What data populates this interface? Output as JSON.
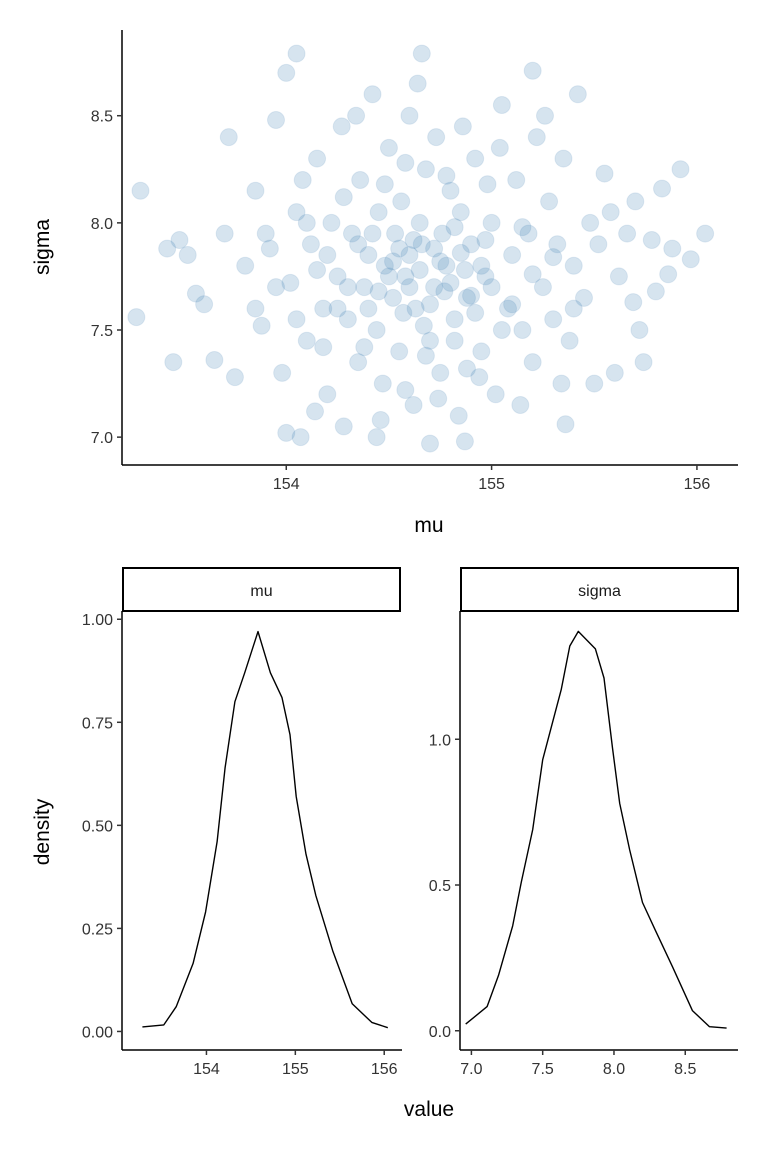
{
  "chart_data": [
    {
      "type": "scatter",
      "xlabel": "mu",
      "ylabel": "sigma",
      "xticks": [
        "154",
        "155",
        "156"
      ],
      "yticks": [
        "7.0",
        "7.5",
        "8.0",
        "8.5"
      ],
      "xtick_values": [
        154,
        155,
        156
      ],
      "ytick_values": [
        7.0,
        7.5,
        8.0,
        8.5
      ],
      "xlim": [
        153.2,
        156.2
      ],
      "ylim": [
        6.87,
        8.9
      ],
      "color": "#4682b4",
      "alpha": 0.22,
      "points": [
        [
          153.29,
          8.15
        ],
        [
          153.27,
          7.56
        ],
        [
          153.42,
          7.88
        ],
        [
          153.48,
          7.92
        ],
        [
          153.52,
          7.85
        ],
        [
          153.56,
          7.67
        ],
        [
          153.45,
          7.35
        ],
        [
          153.65,
          7.36
        ],
        [
          153.6,
          7.62
        ],
        [
          153.7,
          7.95
        ],
        [
          154.05,
          8.79
        ],
        [
          154.0,
          8.7
        ],
        [
          154.66,
          8.79
        ],
        [
          155.2,
          8.71
        ],
        [
          154.7,
          6.97
        ],
        [
          154.0,
          7.02
        ],
        [
          154.07,
          7.0
        ],
        [
          154.44,
          7.0
        ],
        [
          154.87,
          6.98
        ],
        [
          155.36,
          7.06
        ],
        [
          156.04,
          7.95
        ],
        [
          155.97,
          7.83
        ],
        [
          155.92,
          8.25
        ],
        [
          155.86,
          7.76
        ],
        [
          155.83,
          8.16
        ],
        [
          155.78,
          7.92
        ],
        [
          155.69,
          7.63
        ],
        [
          155.74,
          7.35
        ],
        [
          155.6,
          7.3
        ],
        [
          155.55,
          8.23
        ],
        [
          153.72,
          8.4
        ],
        [
          153.75,
          7.28
        ],
        [
          153.8,
          7.8
        ],
        [
          153.85,
          8.15
        ],
        [
          153.88,
          7.52
        ],
        [
          153.9,
          7.95
        ],
        [
          153.95,
          8.48
        ],
        [
          153.98,
          7.3
        ],
        [
          154.02,
          7.72
        ],
        [
          154.05,
          8.05
        ],
        [
          154.1,
          7.45
        ],
        [
          154.12,
          7.9
        ],
        [
          154.15,
          8.3
        ],
        [
          154.18,
          7.6
        ],
        [
          154.2,
          7.2
        ],
        [
          154.22,
          8.0
        ],
        [
          154.25,
          7.75
        ],
        [
          154.27,
          8.45
        ],
        [
          154.3,
          7.55
        ],
        [
          154.32,
          7.95
        ],
        [
          154.35,
          7.35
        ],
        [
          154.36,
          8.2
        ],
        [
          154.38,
          7.7
        ],
        [
          154.4,
          7.85
        ],
        [
          154.42,
          8.6
        ],
        [
          154.44,
          7.5
        ],
        [
          154.45,
          8.05
        ],
        [
          154.47,
          7.25
        ],
        [
          154.48,
          7.8
        ],
        [
          154.5,
          8.35
        ],
        [
          154.52,
          7.65
        ],
        [
          154.53,
          7.95
        ],
        [
          154.55,
          7.4
        ],
        [
          154.56,
          8.1
        ],
        [
          154.58,
          7.75
        ],
        [
          154.6,
          7.85
        ],
        [
          154.6,
          8.5
        ],
        [
          154.62,
          7.15
        ],
        [
          154.63,
          7.6
        ],
        [
          154.65,
          8.0
        ],
        [
          154.66,
          7.9
        ],
        [
          154.68,
          8.25
        ],
        [
          154.7,
          7.45
        ],
        [
          154.72,
          7.7
        ],
        [
          154.73,
          8.4
        ],
        [
          154.75,
          7.3
        ],
        [
          154.76,
          7.95
        ],
        [
          154.78,
          7.8
        ],
        [
          154.8,
          8.15
        ],
        [
          154.82,
          7.55
        ],
        [
          154.84,
          7.1
        ],
        [
          154.85,
          8.05
        ],
        [
          154.88,
          7.65
        ],
        [
          154.9,
          7.9
        ],
        [
          154.92,
          8.3
        ],
        [
          154.95,
          7.4
        ],
        [
          154.97,
          7.75
        ],
        [
          155.0,
          8.0
        ],
        [
          155.02,
          7.2
        ],
        [
          155.05,
          8.55
        ],
        [
          155.08,
          7.6
        ],
        [
          155.1,
          7.85
        ],
        [
          155.12,
          8.2
        ],
        [
          155.15,
          7.5
        ],
        [
          155.18,
          7.95
        ],
        [
          155.2,
          7.35
        ],
        [
          155.22,
          8.4
        ],
        [
          155.25,
          7.7
        ],
        [
          155.28,
          8.1
        ],
        [
          155.3,
          7.55
        ],
        [
          155.32,
          7.9
        ],
        [
          155.35,
          8.3
        ],
        [
          155.38,
          7.45
        ],
        [
          155.4,
          7.8
        ],
        [
          155.42,
          8.6
        ],
        [
          155.45,
          7.65
        ],
        [
          155.48,
          8.0
        ],
        [
          155.5,
          7.25
        ],
        [
          155.52,
          7.9
        ],
        [
          155.58,
          8.05
        ],
        [
          155.62,
          7.75
        ],
        [
          155.66,
          7.95
        ],
        [
          155.7,
          8.1
        ],
        [
          155.72,
          7.5
        ],
        [
          155.8,
          7.68
        ],
        [
          155.88,
          7.88
        ],
        [
          154.08,
          8.2
        ],
        [
          154.14,
          7.12
        ],
        [
          154.28,
          7.05
        ],
        [
          154.34,
          8.5
        ],
        [
          154.46,
          7.08
        ],
        [
          154.58,
          7.22
        ],
        [
          154.64,
          8.65
        ],
        [
          154.74,
          7.18
        ],
        [
          154.86,
          8.45
        ],
        [
          154.94,
          7.28
        ],
        [
          155.04,
          8.35
        ],
        [
          155.14,
          7.15
        ],
        [
          155.26,
          8.5
        ],
        [
          155.34,
          7.25
        ],
        [
          154.2,
          7.85
        ],
        [
          154.3,
          7.7
        ],
        [
          154.4,
          7.6
        ],
        [
          154.5,
          7.75
        ],
        [
          154.55,
          7.88
        ],
        [
          154.6,
          7.7
        ],
        [
          154.65,
          7.78
        ],
        [
          154.7,
          7.62
        ],
        [
          154.75,
          7.82
        ],
        [
          154.8,
          7.72
        ],
        [
          154.85,
          7.86
        ],
        [
          154.9,
          7.66
        ],
        [
          154.95,
          7.8
        ],
        [
          155.0,
          7.7
        ],
        [
          154.35,
          7.9
        ],
        [
          154.45,
          7.68
        ],
        [
          154.52,
          7.82
        ],
        [
          154.57,
          7.58
        ],
        [
          154.62,
          7.92
        ],
        [
          154.67,
          7.52
        ],
        [
          154.72,
          7.88
        ],
        [
          154.77,
          7.68
        ],
        [
          154.82,
          7.98
        ],
        [
          154.87,
          7.78
        ],
        [
          154.92,
          7.58
        ],
        [
          154.97,
          7.92
        ],
        [
          154.25,
          7.6
        ],
        [
          154.15,
          7.78
        ],
        [
          154.1,
          8.0
        ],
        [
          154.05,
          7.55
        ],
        [
          153.95,
          7.7
        ],
        [
          153.85,
          7.6
        ],
        [
          153.92,
          7.88
        ],
        [
          155.1,
          7.62
        ],
        [
          155.2,
          7.76
        ],
        [
          155.3,
          7.84
        ],
        [
          155.4,
          7.6
        ],
        [
          155.15,
          7.98
        ],
        [
          155.05,
          7.5
        ],
        [
          154.38,
          7.42
        ],
        [
          154.48,
          8.18
        ],
        [
          154.58,
          8.28
        ],
        [
          154.68,
          7.38
        ],
        [
          154.78,
          8.22
        ],
        [
          154.88,
          7.32
        ],
        [
          154.98,
          8.18
        ],
        [
          154.28,
          8.12
        ],
        [
          154.18,
          7.42
        ],
        [
          154.42,
          7.95
        ],
        [
          154.82,
          7.45
        ]
      ]
    },
    {
      "type": "line",
      "facet": "mu",
      "xlabel": "value",
      "ylabel": "density",
      "xticks": [
        "154",
        "155",
        "156"
      ],
      "yticks": [
        "0.00",
        "0.25",
        "0.50",
        "0.75",
        "1.00"
      ],
      "xtick_values": [
        154,
        155,
        156
      ],
      "ytick_values": [
        0,
        0.25,
        0.5,
        0.75,
        1.0
      ],
      "xlim": [
        153.05,
        156.2
      ],
      "ylim": [
        -0.045,
        1.02
      ],
      "x": [
        153.28,
        153.52,
        153.66,
        153.85,
        153.99,
        154.12,
        154.21,
        154.32,
        154.43,
        154.58,
        154.72,
        154.85,
        154.94,
        155.01,
        155.12,
        155.23,
        155.42,
        155.64,
        155.86,
        156.04
      ],
      "y": [
        0.011,
        0.016,
        0.06,
        0.165,
        0.29,
        0.46,
        0.64,
        0.8,
        0.87,
        0.97,
        0.87,
        0.81,
        0.72,
        0.57,
        0.43,
        0.33,
        0.196,
        0.067,
        0.022,
        0.009
      ]
    },
    {
      "type": "line",
      "facet": "sigma",
      "xlabel": "value",
      "ylabel": "density",
      "xticks": [
        "7.0",
        "7.5",
        "8.0",
        "8.5"
      ],
      "yticks": [
        "0.0",
        "0.5",
        "1.0"
      ],
      "xtick_values": [
        7.0,
        7.5,
        8.0,
        8.5
      ],
      "ytick_values": [
        0,
        0.5,
        1.0
      ],
      "xlim": [
        6.92,
        8.87
      ],
      "ylim": [
        -0.066,
        1.44
      ],
      "x": [
        6.96,
        7.11,
        7.19,
        7.29,
        7.35,
        7.43,
        7.5,
        7.57,
        7.63,
        7.69,
        7.75,
        7.87,
        7.93,
        7.99,
        8.04,
        8.11,
        8.2,
        8.29,
        8.41,
        8.55,
        8.67,
        8.79
      ],
      "y": [
        0.023,
        0.083,
        0.19,
        0.36,
        0.51,
        0.69,
        0.93,
        1.06,
        1.17,
        1.32,
        1.37,
        1.31,
        1.21,
        0.97,
        0.78,
        0.62,
        0.44,
        0.345,
        0.22,
        0.069,
        0.014,
        0.009
      ]
    }
  ]
}
